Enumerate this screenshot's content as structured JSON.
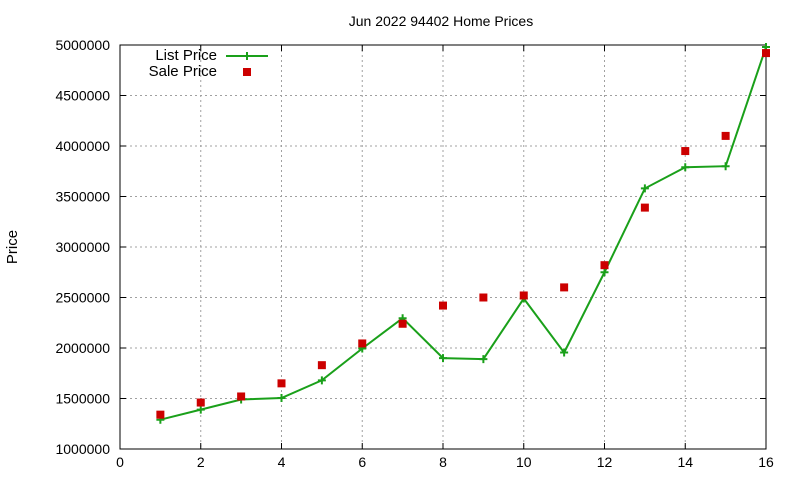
{
  "chart_data": {
    "type": "line",
    "title": "Jun 2022 94402 Home Prices",
    "xlabel": "",
    "ylabel": "Price",
    "xlim": [
      0,
      16
    ],
    "ylim": [
      1000000,
      5000000
    ],
    "xticks": [
      0,
      2,
      4,
      6,
      8,
      10,
      12,
      14,
      16
    ],
    "yticks": [
      1000000,
      1500000,
      2000000,
      2500000,
      3000000,
      3500000,
      4000000,
      4500000,
      5000000
    ],
    "grid": true,
    "legend_position": "top-left",
    "x": [
      1,
      2,
      3,
      4,
      5,
      6,
      7,
      8,
      9,
      10,
      11,
      12,
      13,
      14,
      15,
      16
    ],
    "series": [
      {
        "name": "List Price",
        "style": "line-points",
        "marker": "plus",
        "color": "#1aa01a",
        "values": [
          1290000,
          1390000,
          1490000,
          1505000,
          1680000,
          1995000,
          2295000,
          1900000,
          1890000,
          2490000,
          1955000,
          2750000,
          3580000,
          3790000,
          3800000,
          4980000
        ]
      },
      {
        "name": "Sale Price",
        "style": "points",
        "marker": "square",
        "color": "#cc0000",
        "values": [
          1340000,
          1460000,
          1520000,
          1650000,
          1830000,
          2045000,
          2240000,
          2420000,
          2500000,
          2520000,
          2600000,
          2820000,
          3390000,
          3950000,
          4100000,
          4920000
        ]
      }
    ]
  }
}
